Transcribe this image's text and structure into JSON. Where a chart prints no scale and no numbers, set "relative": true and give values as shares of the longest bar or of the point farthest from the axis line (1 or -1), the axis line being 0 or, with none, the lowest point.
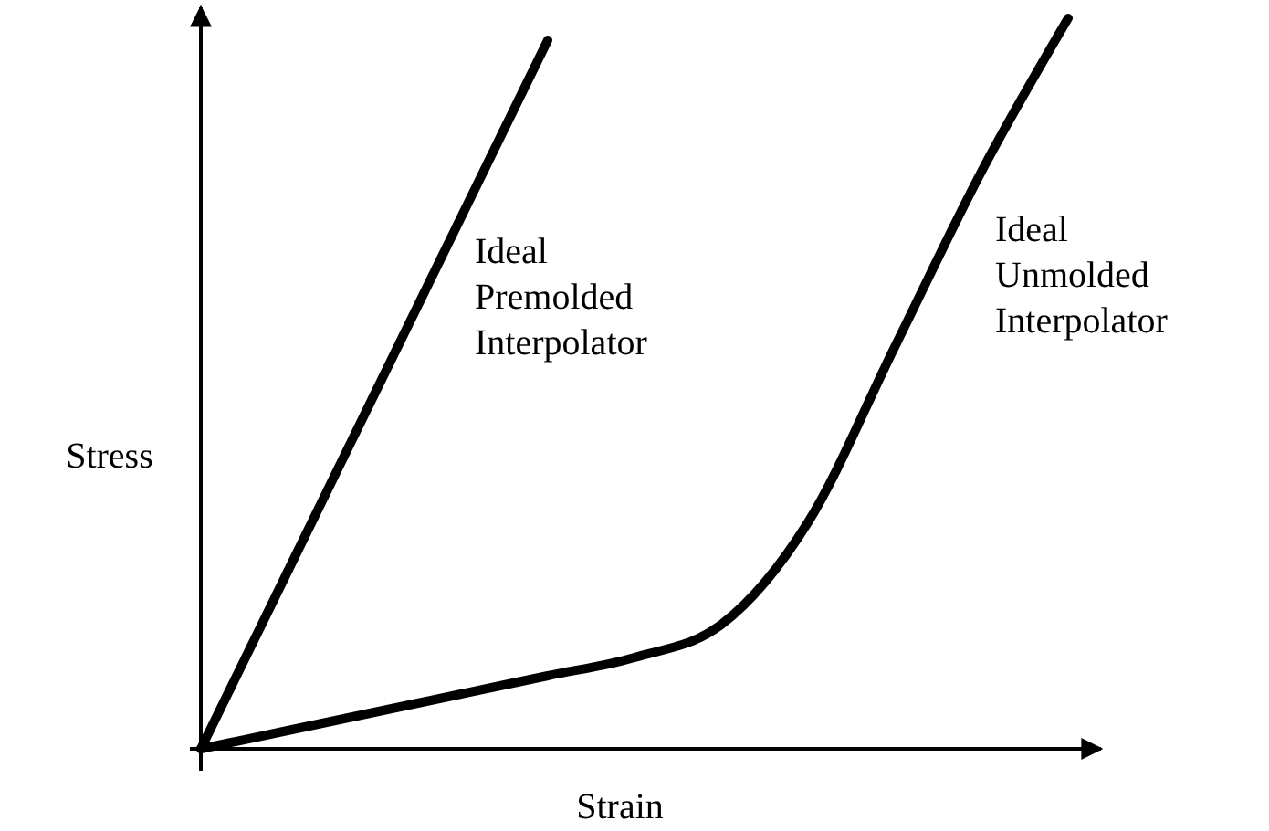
{
  "chart_data": {
    "type": "line",
    "xlabel": "Strain",
    "ylabel": "Stress",
    "relative": true,
    "categories": [
      null,
      null,
      null,
      null,
      null,
      null,
      null,
      null,
      null,
      null,
      null
    ],
    "series": [
      {
        "name": "Ideal Premolded Interpolator",
        "color": "#000000",
        "values": [
          0,
          0.2425,
          0.485,
          0.7275,
          0.97,
          null,
          null,
          null,
          null,
          null,
          null
        ]
      },
      {
        "name": "Ideal Unmolded Interpolator",
        "color": "#000000",
        "values": [
          0,
          0.025,
          0.05,
          0.075,
          0.1,
          0.125,
          0.17,
          0.31,
          0.55,
          0.79,
          1
        ]
      }
    ]
  }
}
